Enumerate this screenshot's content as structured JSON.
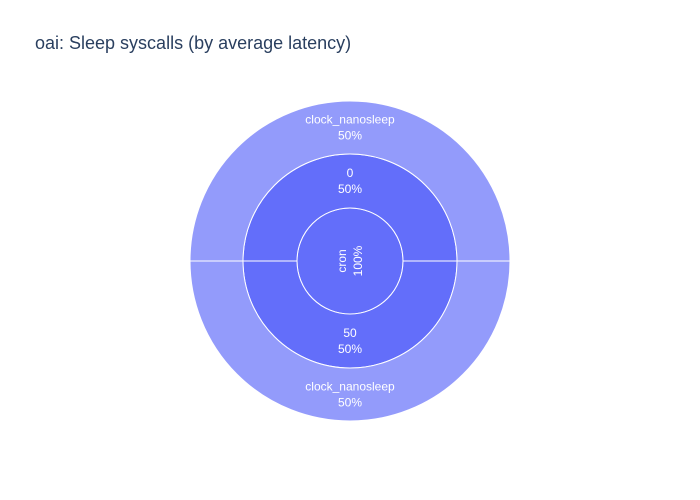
{
  "chart_data": {
    "type": "sunburst",
    "title": "oai: Sleep syscalls (by average latency)",
    "colors": {
      "inner": "#636efa",
      "middle": "#636efa",
      "outer": "#939bfb",
      "separator": "#ffffff"
    },
    "root": {
      "label": "cron",
      "percent_label": "100%",
      "percent": 100,
      "children": [
        {
          "label": "0",
          "percent_label": "50%",
          "percent": 50,
          "children": [
            {
              "label": "clock_nanosleep",
              "percent_label": "50%",
              "percent": 50
            }
          ]
        },
        {
          "label": "50",
          "percent_label": "50%",
          "percent": 50,
          "children": [
            {
              "label": "clock_nanosleep",
              "percent_label": "50%",
              "percent": 50
            }
          ]
        }
      ]
    }
  }
}
